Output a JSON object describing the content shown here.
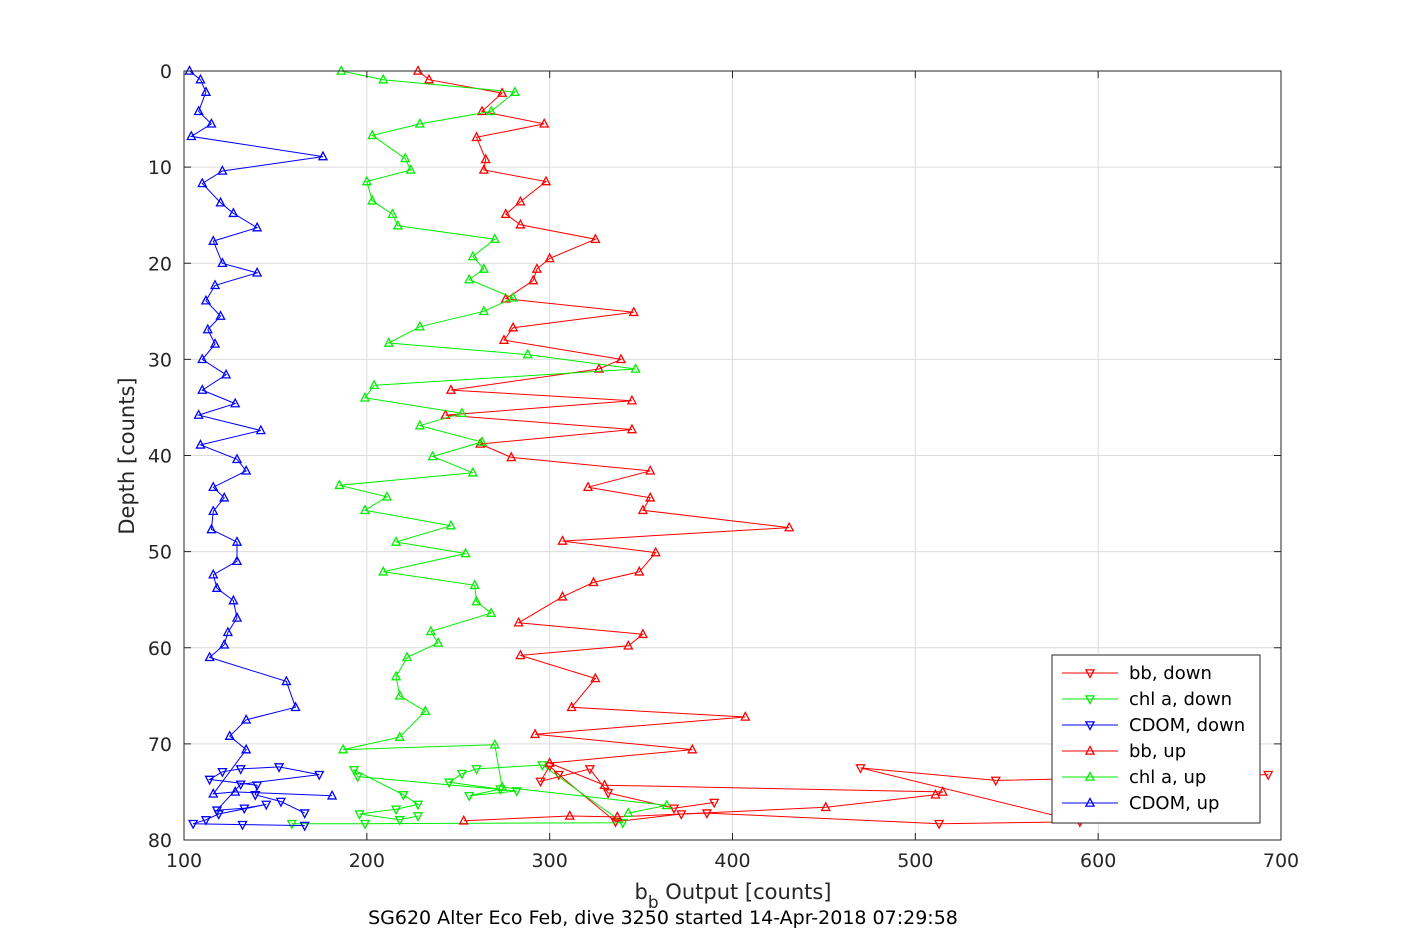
{
  "chart_data": {
    "type": "line",
    "title": "",
    "xlabel_main": "b",
    "xlabel_sub": "b",
    "xlabel_rest": " Output [counts]",
    "ylabel": "Depth [counts]",
    "caption": "SG620 Alter Eco Feb, dive 3250 started 14-Apr-2018 07:29:58",
    "xlim": [
      100,
      700
    ],
    "ylim": [
      0,
      80
    ],
    "y_reversed": true,
    "xticks": [
      100,
      200,
      300,
      400,
      500,
      600,
      700
    ],
    "yticks": [
      0,
      10,
      20,
      30,
      40,
      50,
      60,
      70,
      80
    ],
    "grid": true,
    "legend_position": "bottom-right",
    "series": [
      {
        "name": "bb, down",
        "color": "#ff0000",
        "marker": "triangle-down",
        "points": [
          [
            693,
            73.2
          ],
          [
            544,
            73.8
          ],
          [
            470,
            72.5
          ],
          [
            590,
            78.1
          ],
          [
            513,
            78.3
          ],
          [
            386,
            77.2
          ],
          [
            372,
            77.3
          ],
          [
            336,
            78.1
          ],
          [
            305,
            73.2
          ],
          [
            300,
            72.3
          ],
          [
            295,
            73.9
          ],
          [
            322,
            72.6
          ],
          [
            332,
            75.1
          ],
          [
            368,
            76.7
          ],
          [
            390,
            76.1
          ]
        ]
      },
      {
        "name": "chl a, down",
        "color": "#00ee00",
        "marker": "triangle-down",
        "points": [
          [
            159,
            78.3
          ],
          [
            199,
            78.3
          ],
          [
            340,
            78.2
          ],
          [
            296,
            72.2
          ],
          [
            260,
            72.6
          ],
          [
            252,
            73.1
          ],
          [
            245,
            74.0
          ],
          [
            273,
            74.7
          ],
          [
            256,
            75.4
          ],
          [
            282,
            74.9
          ],
          [
            195,
            73.4
          ],
          [
            193,
            72.7
          ],
          [
            220,
            75.3
          ],
          [
            228,
            76.3
          ],
          [
            216,
            76.8
          ],
          [
            196,
            77.3
          ],
          [
            218,
            77.9
          ],
          [
            228,
            77.5
          ]
        ]
      },
      {
        "name": "CDOM, down",
        "color": "#0000ff",
        "marker": "triangle-down",
        "points": [
          [
            166,
            78.5
          ],
          [
            132,
            78.4
          ],
          [
            105,
            78.3
          ],
          [
            112,
            77.9
          ],
          [
            119,
            77.3
          ],
          [
            145,
            76.3
          ],
          [
            133,
            76.7
          ],
          [
            118,
            76.9
          ],
          [
            131,
            74.2
          ],
          [
            174,
            73.2
          ],
          [
            152,
            72.4
          ],
          [
            131,
            72.6
          ],
          [
            121,
            72.9
          ],
          [
            114,
            73.7
          ],
          [
            140,
            74.3
          ],
          [
            139,
            75.3
          ],
          [
            153,
            76.0
          ],
          [
            166,
            77.2
          ]
        ]
      },
      {
        "name": "bb, up",
        "color": "#ff0000",
        "marker": "triangle-up",
        "points": [
          [
            253,
            78.0
          ],
          [
            311,
            77.5
          ],
          [
            337,
            77.6
          ],
          [
            451,
            76.6
          ],
          [
            511,
            75.3
          ],
          [
            515,
            75.0
          ],
          [
            330,
            74.3
          ],
          [
            300,
            72.0
          ],
          [
            378,
            70.6
          ],
          [
            292,
            69.0
          ],
          [
            407,
            67.2
          ],
          [
            312,
            66.2
          ],
          [
            325,
            63.2
          ],
          [
            284,
            60.8
          ],
          [
            343,
            59.8
          ],
          [
            351,
            58.6
          ],
          [
            283,
            57.4
          ],
          [
            307,
            54.7
          ],
          [
            324,
            53.2
          ],
          [
            349,
            52.1
          ],
          [
            358,
            50.1
          ],
          [
            307,
            48.9
          ],
          [
            431,
            47.5
          ],
          [
            351,
            45.7
          ],
          [
            355,
            44.4
          ],
          [
            321,
            43.3
          ],
          [
            355,
            41.6
          ],
          [
            279,
            40.2
          ],
          [
            262,
            38.8
          ],
          [
            345,
            37.3
          ],
          [
            243,
            35.8
          ],
          [
            345,
            34.3
          ],
          [
            246,
            33.2
          ],
          [
            327,
            31.0
          ],
          [
            339,
            30.0
          ],
          [
            275,
            28.0
          ],
          [
            280,
            26.7
          ],
          [
            346,
            25.1
          ],
          [
            276,
            23.7
          ],
          [
            291,
            21.8
          ],
          [
            293,
            20.6
          ],
          [
            300,
            19.5
          ],
          [
            325,
            17.5
          ],
          [
            284,
            16.0
          ],
          [
            276,
            14.9
          ],
          [
            284,
            13.6
          ],
          [
            298,
            11.5
          ],
          [
            264,
            10.3
          ],
          [
            265,
            9.2
          ],
          [
            260,
            6.9
          ],
          [
            297,
            5.5
          ],
          [
            263,
            4.2
          ],
          [
            274,
            2.3
          ],
          [
            234,
            0.9
          ],
          [
            228,
            0.0
          ]
        ]
      },
      {
        "name": "chl a, up",
        "color": "#00ee00",
        "marker": "triangle-up",
        "points": [
          [
            343,
            77.2
          ],
          [
            364,
            76.4
          ],
          [
            274,
            74.5
          ],
          [
            270,
            70.1
          ],
          [
            187,
            70.6
          ],
          [
            218,
            69.3
          ],
          [
            232,
            66.6
          ],
          [
            218,
            65.0
          ],
          [
            216,
            63.0
          ],
          [
            222,
            61.0
          ],
          [
            239,
            59.5
          ],
          [
            235,
            58.3
          ],
          [
            268,
            56.4
          ],
          [
            260,
            55.2
          ],
          [
            259,
            53.5
          ],
          [
            209,
            52.1
          ],
          [
            254,
            50.2
          ],
          [
            216,
            49.0
          ],
          [
            246,
            47.3
          ],
          [
            199,
            45.7
          ],
          [
            211,
            44.3
          ],
          [
            185,
            43.1
          ],
          [
            258,
            41.8
          ],
          [
            236,
            40.1
          ],
          [
            263,
            38.6
          ],
          [
            229,
            36.9
          ],
          [
            252,
            35.6
          ],
          [
            199,
            34.0
          ],
          [
            204,
            32.7
          ],
          [
            347,
            31.0
          ],
          [
            288,
            29.5
          ],
          [
            212,
            28.3
          ],
          [
            229,
            26.6
          ],
          [
            264,
            25.0
          ],
          [
            280,
            23.6
          ],
          [
            256,
            21.7
          ],
          [
            264,
            20.6
          ],
          [
            258,
            19.3
          ],
          [
            270,
            17.5
          ],
          [
            217,
            16.1
          ],
          [
            214,
            14.9
          ],
          [
            203,
            13.5
          ],
          [
            200,
            11.5
          ],
          [
            224,
            10.3
          ],
          [
            221,
            9.1
          ],
          [
            203,
            6.7
          ],
          [
            229,
            5.5
          ],
          [
            268,
            4.2
          ],
          [
            281,
            2.2
          ],
          [
            209,
            0.9
          ],
          [
            186,
            0.0
          ]
        ]
      },
      {
        "name": "CDOM, up",
        "color": "#0000ff",
        "marker": "triangle-up",
        "points": [
          [
            181,
            75.4
          ],
          [
            128,
            75.0
          ],
          [
            116,
            75.2
          ],
          [
            134,
            70.6
          ],
          [
            125,
            69.2
          ],
          [
            134,
            67.5
          ],
          [
            161,
            66.2
          ],
          [
            156,
            63.5
          ],
          [
            114,
            61.0
          ],
          [
            122,
            59.7
          ],
          [
            124,
            58.4
          ],
          [
            129,
            56.9
          ],
          [
            127,
            55.1
          ],
          [
            118,
            53.8
          ],
          [
            116,
            52.4
          ],
          [
            129,
            51.0
          ],
          [
            129,
            49.0
          ],
          [
            115,
            47.7
          ],
          [
            116,
            45.8
          ],
          [
            122,
            44.4
          ],
          [
            116,
            43.3
          ],
          [
            134,
            41.6
          ],
          [
            129,
            40.4
          ],
          [
            109,
            38.9
          ],
          [
            142,
            37.4
          ],
          [
            108,
            35.8
          ],
          [
            128,
            34.6
          ],
          [
            110,
            33.2
          ],
          [
            123,
            31.6
          ],
          [
            110,
            30.0
          ],
          [
            117,
            28.4
          ],
          [
            113,
            26.9
          ],
          [
            120,
            25.5
          ],
          [
            112,
            23.9
          ],
          [
            117,
            22.3
          ],
          [
            140,
            21.0
          ],
          [
            121,
            20.0
          ],
          [
            116,
            17.7
          ],
          [
            140,
            16.3
          ],
          [
            127,
            14.8
          ],
          [
            120,
            13.7
          ],
          [
            110,
            11.7
          ],
          [
            121,
            10.4
          ],
          [
            176,
            8.9
          ],
          [
            104,
            6.8
          ],
          [
            115,
            5.5
          ],
          [
            108,
            4.2
          ],
          [
            112,
            2.2
          ],
          [
            109,
            0.9
          ],
          [
            103,
            0.0
          ]
        ]
      }
    ]
  }
}
